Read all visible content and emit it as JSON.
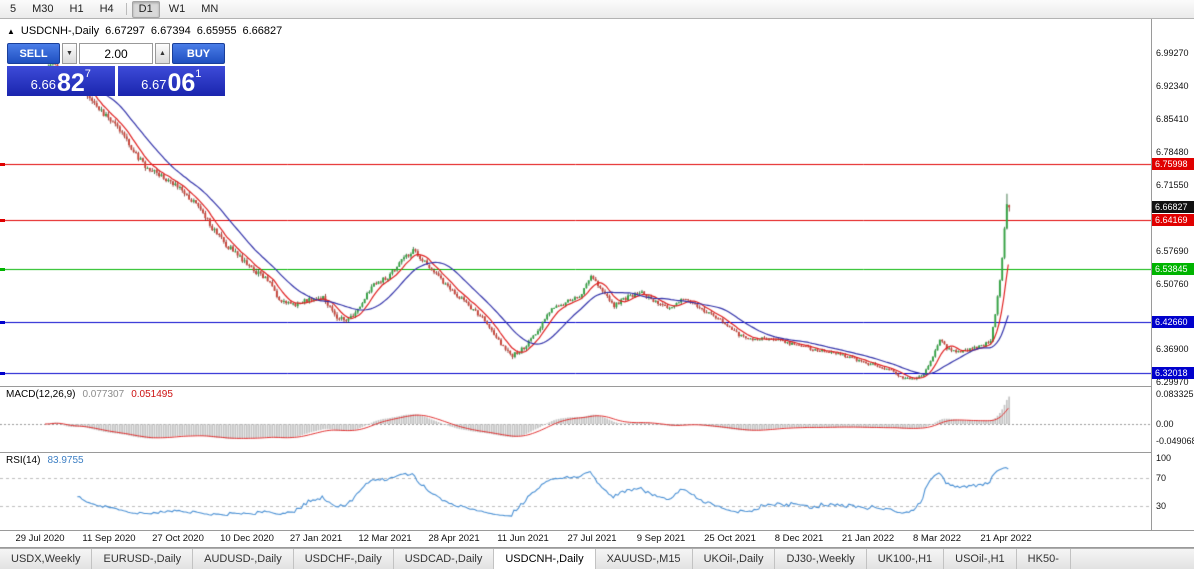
{
  "toolbar": {
    "timeframes": [
      "5",
      "M30",
      "H1",
      "H4",
      "D1",
      "W1",
      "MN"
    ],
    "active_timeframe": "D1"
  },
  "chart_header": {
    "expand_icon": "▲",
    "symbol": "USDCNH-,Daily",
    "open": "6.67297",
    "high": "6.67394",
    "low": "6.65955",
    "close": "6.66827"
  },
  "trade_panel": {
    "sell_label": "SELL",
    "buy_label": "BUY",
    "volume": "2.00",
    "down_arrow": "▼",
    "up_arrow": "▲",
    "sell_price": {
      "main": "6.66",
      "pips": "82",
      "pipette": "7"
    },
    "buy_price": {
      "main": "6.67",
      "pips": "06",
      "pipette": "1"
    }
  },
  "price_axis": {
    "ticks": [
      {
        "label": "6.99270",
        "value": 6.9927
      },
      {
        "label": "6.92340",
        "value": 6.9234
      },
      {
        "label": "6.85410",
        "value": 6.8541
      },
      {
        "label": "6.78480",
        "value": 6.7848
      },
      {
        "label": "6.71550",
        "value": 6.7155
      },
      {
        "label": "6.57690",
        "value": 6.5769
      },
      {
        "label": "6.50760",
        "value": 6.5076
      },
      {
        "label": "6.36900",
        "value": 6.369
      },
      {
        "label": "6.29970",
        "value": 6.2997
      }
    ],
    "badges": [
      {
        "label": "6.75998",
        "value": 6.75998,
        "color": "#e00000"
      },
      {
        "label": "6.66827",
        "value": 6.66827,
        "color": "#111111"
      },
      {
        "label": "6.64169",
        "value": 6.64169,
        "color": "#e00000"
      },
      {
        "label": "6.53845",
        "value": 6.53845,
        "color": "#00b400"
      },
      {
        "label": "6.42660",
        "value": 6.4266,
        "color": "#0000cc"
      },
      {
        "label": "6.32018",
        "value": 6.32018,
        "color": "#0000cc"
      }
    ]
  },
  "macd_panel": {
    "label": "MACD(12,26,9)",
    "main_value": "0.077307",
    "signal_value": "0.051495",
    "ticks": [
      {
        "label": "0.083325",
        "value": 0.083325
      },
      {
        "label": "0.00",
        "value": 0
      },
      {
        "label": "-0.049068",
        "value": -0.049068
      }
    ]
  },
  "rsi_panel": {
    "label": "RSI(14)",
    "value": "83.9755",
    "ticks": [
      {
        "label": "100",
        "value": 100
      },
      {
        "label": "70",
        "value": 70
      },
      {
        "label": "30",
        "value": 30
      }
    ]
  },
  "date_axis": {
    "labels": [
      "29 Jul 2020",
      "11 Sep 2020",
      "27 Oct 2020",
      "10 Dec 2020",
      "27 Jan 2021",
      "12 Mar 2021",
      "28 Apr 2021",
      "11 Jun 2021",
      "27 Jul 2021",
      "9 Sep 2021",
      "25 Oct 2021",
      "8 Dec 2021",
      "21 Jan 2022",
      "8 Mar 2022",
      "21 Apr 2022"
    ]
  },
  "tab_bar": {
    "tabs": [
      "USDX,Weekly",
      "EURUSD-,Daily",
      "AUDUSD-,Daily",
      "USDCHF-,Daily",
      "USDCAD-,Daily",
      "USDCNH-,Daily",
      "XAUUSD-,M15",
      "UKOil-,Daily",
      "DJ30-,Weekly",
      "UK100-,H1",
      "USOil-,H1",
      "HK50-"
    ],
    "active_tab": "USDCNH-,Daily"
  },
  "chart_data": {
    "type": "candlestick",
    "symbol": "USDCNH-",
    "timeframe": "Daily",
    "title": "USDCNH-,Daily",
    "last_candle": {
      "open": 6.67297,
      "high": 6.67394,
      "low": 6.65955,
      "close": 6.66827
    },
    "y_axis_ticks": [
      6.9927,
      6.9234,
      6.8541,
      6.7848,
      6.7155,
      6.5769,
      6.5076,
      6.369,
      6.2997
    ],
    "x_axis_ticks": [
      "29 Jul 2020",
      "11 Sep 2020",
      "27 Oct 2020",
      "10 Dec 2020",
      "27 Jan 2021",
      "12 Mar 2021",
      "28 Apr 2021",
      "11 Jun 2021",
      "27 Jul 2021",
      "9 Sep 2021",
      "25 Oct 2021",
      "8 Dec 2021",
      "21 Jan 2022",
      "8 Mar 2022",
      "21 Apr 2022"
    ],
    "y_render_range": [
      6.292,
      7.065
    ],
    "horizontal_lines": [
      {
        "price": 6.75998,
        "color": "#e00000"
      },
      {
        "price": 6.64169,
        "color": "#e00000"
      },
      {
        "price": 6.53845,
        "color": "#00b400"
      },
      {
        "price": 6.4266,
        "color": "#0000cc"
      },
      {
        "price": 6.32018,
        "color": "#0000cc"
      }
    ],
    "moving_averages": [
      {
        "period": 8,
        "color": "#e02020"
      },
      {
        "period": 21,
        "color": "#3333aa"
      }
    ],
    "candle_count": 418,
    "price_path_anchors": [
      [
        0,
        6.95
      ],
      [
        3,
        6.976
      ],
      [
        8,
        6.915
      ],
      [
        14,
        6.938
      ],
      [
        20,
        6.89
      ],
      [
        26,
        6.862
      ],
      [
        30,
        6.845
      ],
      [
        36,
        6.8
      ],
      [
        42,
        6.76
      ],
      [
        48,
        6.74
      ],
      [
        54,
        6.722
      ],
      [
        60,
        6.7
      ],
      [
        66,
        6.668
      ],
      [
        72,
        6.625
      ],
      [
        78,
        6.59
      ],
      [
        84,
        6.562
      ],
      [
        90,
        6.536
      ],
      [
        96,
        6.515
      ],
      [
        102,
        6.468
      ],
      [
        108,
        6.462
      ],
      [
        114,
        6.476
      ],
      [
        120,
        6.478
      ],
      [
        126,
        6.438
      ],
      [
        131,
        6.43
      ],
      [
        136,
        6.462
      ],
      [
        142,
        6.505
      ],
      [
        148,
        6.522
      ],
      [
        154,
        6.558
      ],
      [
        159,
        6.577
      ],
      [
        165,
        6.55
      ],
      [
        171,
        6.515
      ],
      [
        177,
        6.488
      ],
      [
        183,
        6.462
      ],
      [
        189,
        6.435
      ],
      [
        196,
        6.388
      ],
      [
        202,
        6.356
      ],
      [
        207,
        6.372
      ],
      [
        213,
        6.41
      ],
      [
        219,
        6.455
      ],
      [
        225,
        6.468
      ],
      [
        231,
        6.48
      ],
      [
        236,
        6.52
      ],
      [
        240,
        6.498
      ],
      [
        246,
        6.462
      ],
      [
        252,
        6.48
      ],
      [
        258,
        6.488
      ],
      [
        264,
        6.468
      ],
      [
        270,
        6.455
      ],
      [
        276,
        6.476
      ],
      [
        282,
        6.46
      ],
      [
        288,
        6.442
      ],
      [
        294,
        6.425
      ],
      [
        300,
        6.4
      ],
      [
        306,
        6.39
      ],
      [
        312,
        6.392
      ],
      [
        318,
        6.388
      ],
      [
        324,
        6.378
      ],
      [
        330,
        6.372
      ],
      [
        336,
        6.366
      ],
      [
        342,
        6.36
      ],
      [
        348,
        6.352
      ],
      [
        354,
        6.342
      ],
      [
        360,
        6.334
      ],
      [
        366,
        6.324
      ],
      [
        371,
        6.31
      ],
      [
        376,
        6.305
      ],
      [
        380,
        6.318
      ],
      [
        384,
        6.355
      ],
      [
        387,
        6.392
      ],
      [
        390,
        6.372
      ],
      [
        394,
        6.362
      ],
      [
        398,
        6.366
      ],
      [
        402,
        6.372
      ],
      [
        406,
        6.378
      ],
      [
        409,
        6.385
      ],
      [
        411,
        6.44
      ],
      [
        413,
        6.515
      ],
      [
        414,
        6.56
      ],
      [
        415,
        6.622
      ],
      [
        416,
        6.675
      ],
      [
        417,
        6.668
      ]
    ],
    "indicators": {
      "macd": {
        "fast": 12,
        "slow": 26,
        "signal": 9,
        "main_value": 0.077307,
        "signal_value": 0.051495,
        "axis_max": 0.083325,
        "axis_min": -0.049068
      },
      "rsi": {
        "period": 14,
        "value": 83.9755,
        "levels": [
          70,
          30
        ]
      }
    },
    "colors": {
      "up_body": "#35a244",
      "up_outline": "#1e5c28",
      "down_body": "#c8453a",
      "down_outline": "#7c241c",
      "macd_hist": "#c4c4c4",
      "macd_signal": "#e03030",
      "rsi_line": "#4a90d4",
      "rsi_level": "#bcbcbc"
    }
  }
}
